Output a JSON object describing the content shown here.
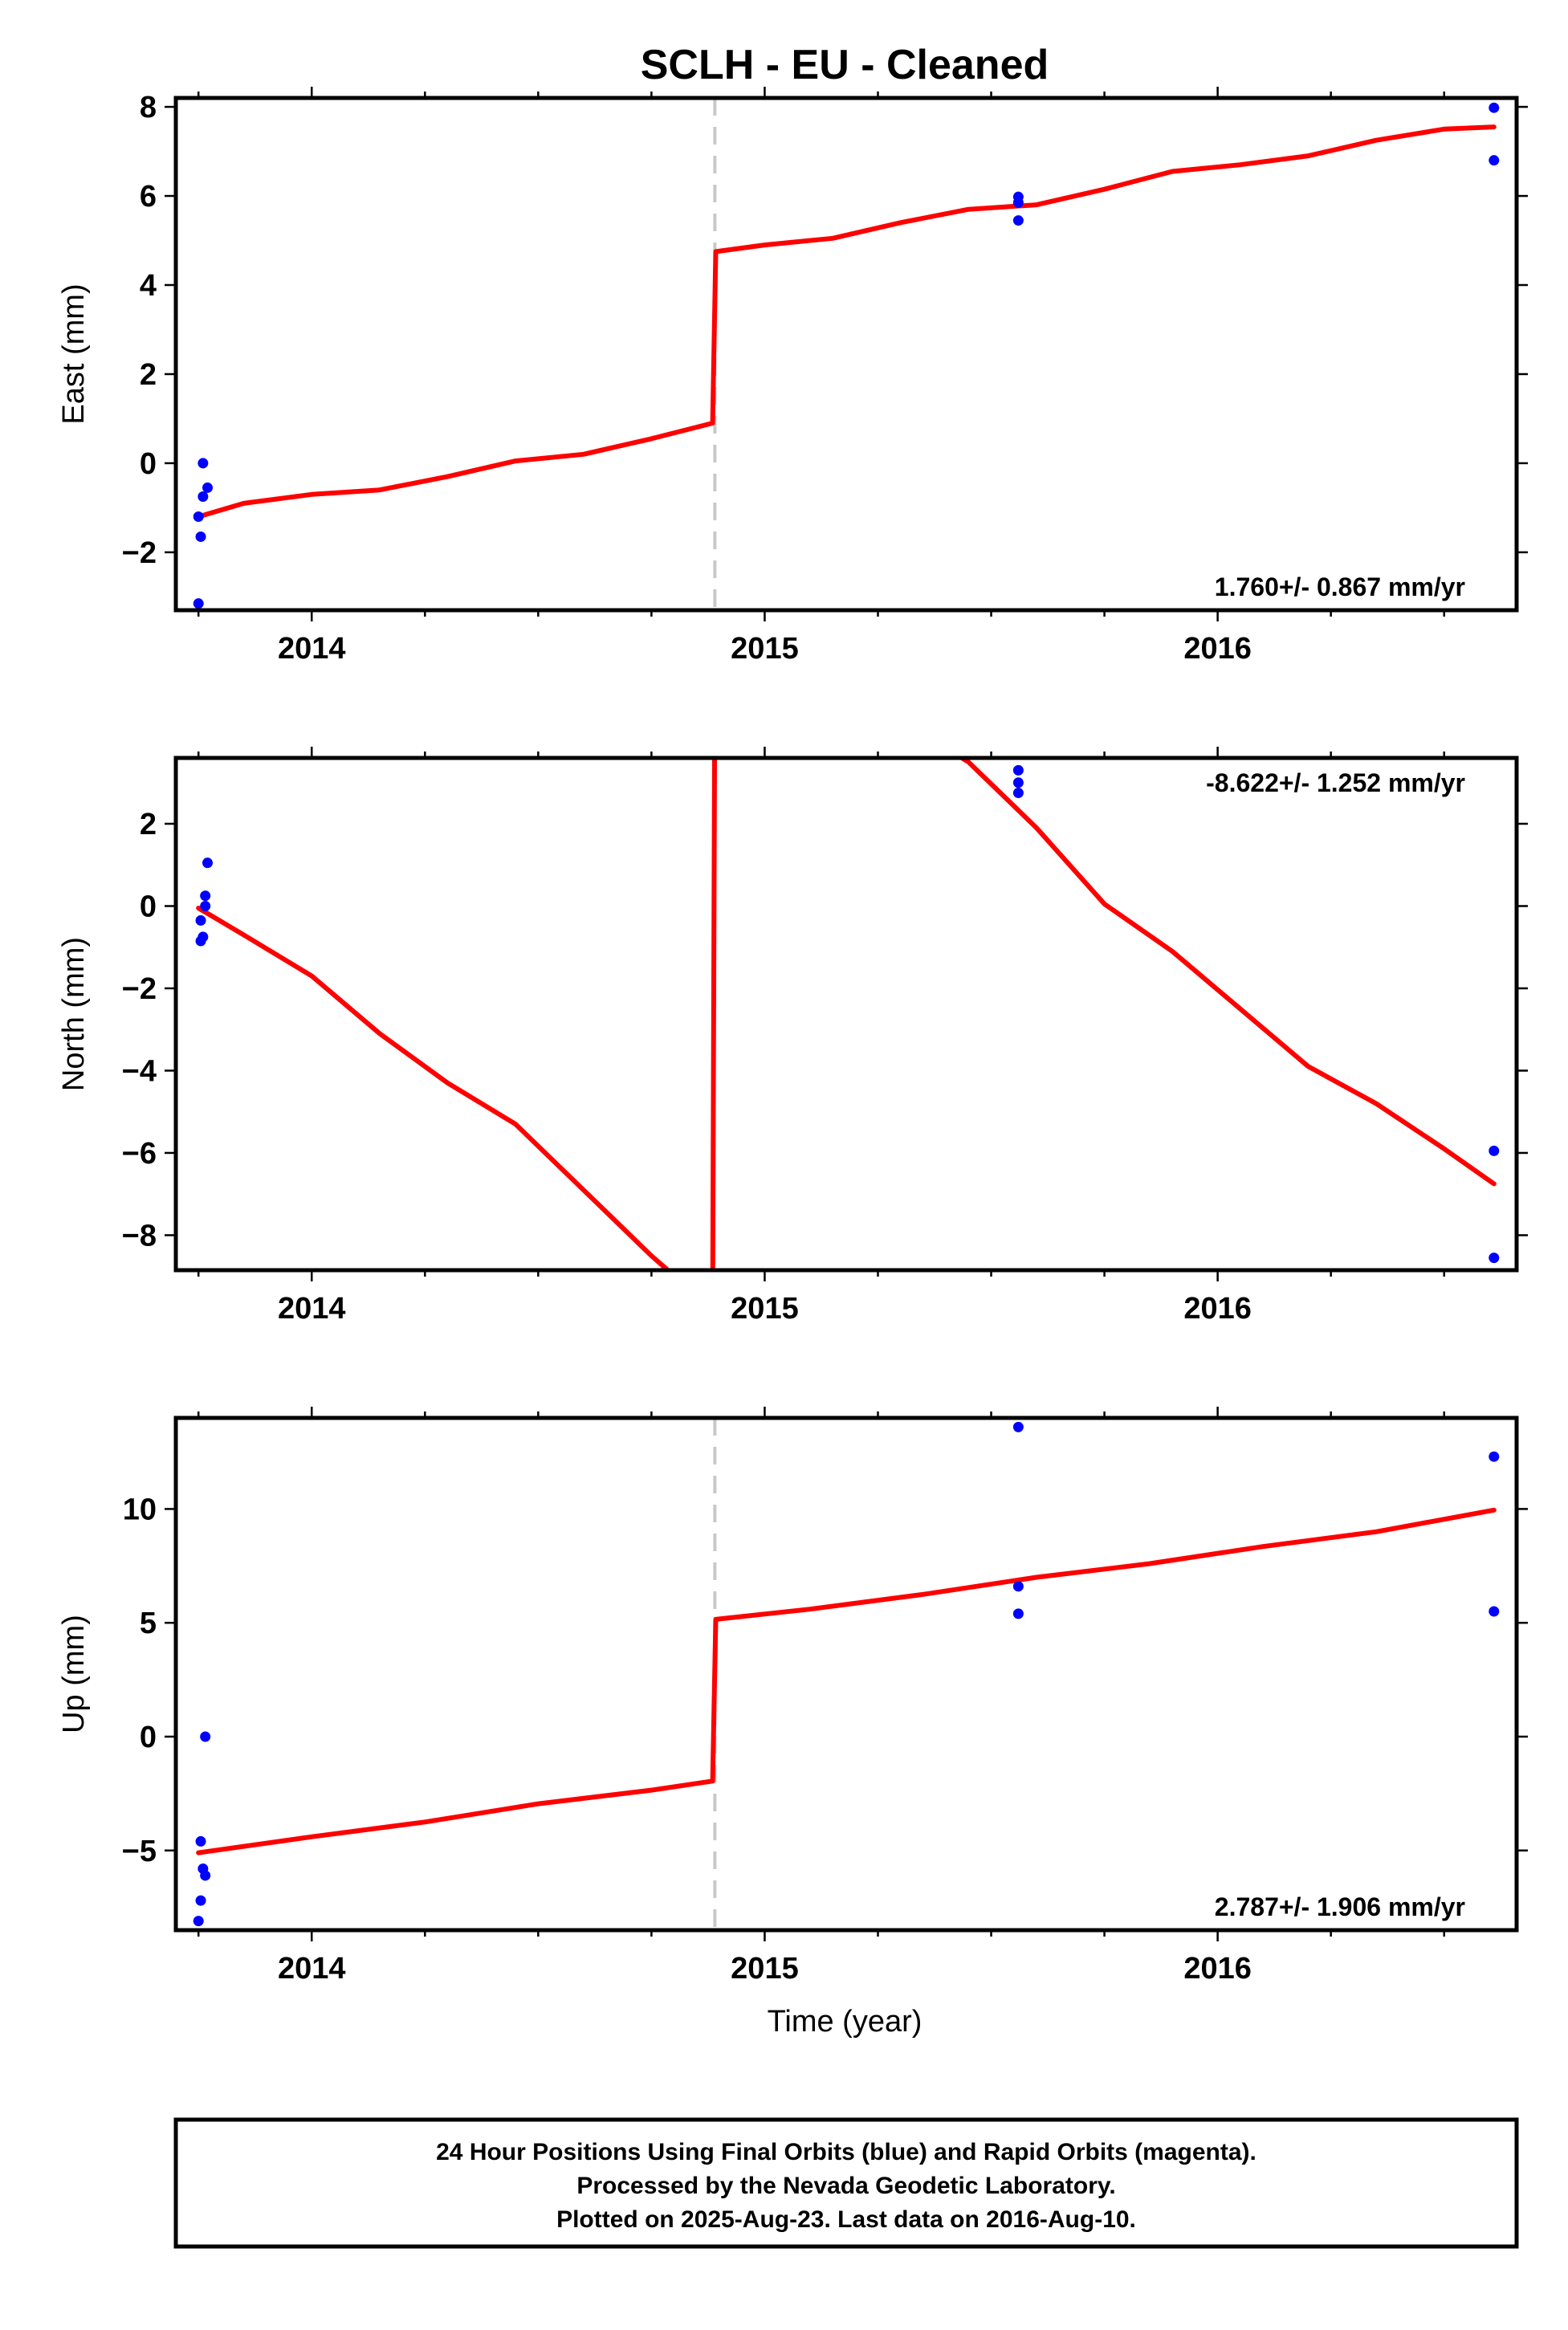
{
  "figure": {
    "title": "SCLH  - EU - Cleaned",
    "xlabel": "Time (year)",
    "footer_lines": [
      "24 Hour Positions Using Final Orbits (blue) and Rapid Orbits (magenta).",
      "Processed by the Nevada Geodetic Laboratory.",
      "Plotted on 2025-Aug-23. Last data on 2016-Aug-10."
    ],
    "colors": {
      "data_points": "#0000ff",
      "model_line": "#ff0000",
      "equipment_change": "#c8c8c8",
      "frame": "#000000"
    }
  },
  "chart_data": [
    {
      "type": "scatter",
      "name": "east",
      "ylabel": "East (mm)",
      "rate_label": "1.760+/- 0.867 mm/yr",
      "rate_position": "bottom-right",
      "xlim": [
        2013.7,
        2016.66
      ],
      "ylim": [
        -3.3,
        8.2
      ],
      "xticks": [
        2014,
        2015,
        2016
      ],
      "xtick_labels": [
        "2014",
        "2015",
        "2016"
      ],
      "yticks": [
        -2,
        0,
        2,
        4,
        6,
        8
      ],
      "ytick_labels": [
        "−2",
        "0",
        "2",
        "4",
        "6",
        "8"
      ],
      "grid": false,
      "offset_line_x": 2014.89,
      "points": [
        {
          "x": 2013.76,
          "y": 0.0
        },
        {
          "x": 2013.77,
          "y": -0.55
        },
        {
          "x": 2013.76,
          "y": -0.75
        },
        {
          "x": 2013.75,
          "y": -1.2
        },
        {
          "x": 2013.755,
          "y": -1.65
        },
        {
          "x": 2013.75,
          "y": -3.15
        },
        {
          "x": 2015.56,
          "y": 5.98
        },
        {
          "x": 2015.56,
          "y": 5.85
        },
        {
          "x": 2015.56,
          "y": 5.45
        },
        {
          "x": 2016.61,
          "y": 7.98
        },
        {
          "x": 2016.61,
          "y": 6.8
        }
      ],
      "model": [
        {
          "x": 2013.75,
          "y": -1.2
        },
        {
          "x": 2013.85,
          "y": -0.9
        },
        {
          "x": 2014.0,
          "y": -0.7
        },
        {
          "x": 2014.15,
          "y": -0.6
        },
        {
          "x": 2014.3,
          "y": -0.3
        },
        {
          "x": 2014.45,
          "y": 0.05
        },
        {
          "x": 2014.6,
          "y": 0.2
        },
        {
          "x": 2014.75,
          "y": 0.55
        },
        {
          "x": 2014.885,
          "y": 0.9
        },
        {
          "x": 2014.892,
          "y": 4.75
        },
        {
          "x": 2015.0,
          "y": 4.9
        },
        {
          "x": 2015.15,
          "y": 5.05
        },
        {
          "x": 2015.3,
          "y": 5.4
        },
        {
          "x": 2015.45,
          "y": 5.7
        },
        {
          "x": 2015.6,
          "y": 5.8
        },
        {
          "x": 2015.75,
          "y": 6.15
        },
        {
          "x": 2015.9,
          "y": 6.55
        },
        {
          "x": 2016.05,
          "y": 6.7
        },
        {
          "x": 2016.2,
          "y": 6.9
        },
        {
          "x": 2016.35,
          "y": 7.25
        },
        {
          "x": 2016.5,
          "y": 7.5
        },
        {
          "x": 2016.61,
          "y": 7.55
        }
      ]
    },
    {
      "type": "scatter",
      "name": "north",
      "ylabel": "North (mm)",
      "rate_label": "-8.622+/- 1.252 mm/yr",
      "rate_position": "top-right",
      "xlim": [
        2013.7,
        2016.66
      ],
      "ylim": [
        -8.85,
        3.6
      ],
      "xticks": [
        2014,
        2015,
        2016
      ],
      "xtick_labels": [
        "2014",
        "2015",
        "2016"
      ],
      "yticks": [
        -8,
        -6,
        -4,
        -2,
        0,
        2
      ],
      "ytick_labels": [
        "−8",
        "−6",
        "−4",
        "−2",
        "0",
        "2"
      ],
      "grid": false,
      "offset_line_x": null,
      "points": [
        {
          "x": 2013.77,
          "y": 1.05
        },
        {
          "x": 2013.765,
          "y": 0.25
        },
        {
          "x": 2013.765,
          "y": 0.0
        },
        {
          "x": 2013.755,
          "y": -0.35
        },
        {
          "x": 2013.76,
          "y": -0.75
        },
        {
          "x": 2013.755,
          "y": -0.85
        },
        {
          "x": 2015.56,
          "y": 3.3
        },
        {
          "x": 2015.56,
          "y": 3.0
        },
        {
          "x": 2015.56,
          "y": 2.75
        },
        {
          "x": 2016.61,
          "y": -5.95
        },
        {
          "x": 2016.61,
          "y": -8.55
        }
      ],
      "model": [
        {
          "x": 2013.75,
          "y": -0.05
        },
        {
          "x": 2013.85,
          "y": -0.7
        },
        {
          "x": 2014.0,
          "y": -1.7
        },
        {
          "x": 2014.15,
          "y": -3.1
        },
        {
          "x": 2014.3,
          "y": -4.3
        },
        {
          "x": 2014.45,
          "y": -5.3
        },
        {
          "x": 2014.6,
          "y": -6.9
        },
        {
          "x": 2014.75,
          "y": -8.5
        },
        {
          "x": 2014.885,
          "y": -9.8
        },
        {
          "x": 2014.892,
          "y": 12.0
        },
        {
          "x": 2015.15,
          "y": 5.5
        },
        {
          "x": 2015.3,
          "y": 4.5
        },
        {
          "x": 2015.45,
          "y": 3.5
        },
        {
          "x": 2015.6,
          "y": 1.9
        },
        {
          "x": 2015.75,
          "y": 0.05
        },
        {
          "x": 2015.9,
          "y": -1.1
        },
        {
          "x": 2016.05,
          "y": -2.5
        },
        {
          "x": 2016.2,
          "y": -3.9
        },
        {
          "x": 2016.35,
          "y": -4.8
        },
        {
          "x": 2016.5,
          "y": -5.9
        },
        {
          "x": 2016.61,
          "y": -6.75
        }
      ]
    },
    {
      "type": "scatter",
      "name": "up",
      "ylabel": "Up (mm)",
      "rate_label": "2.787+/- 1.906 mm/yr",
      "rate_position": "bottom-right",
      "xlim": [
        2013.7,
        2016.66
      ],
      "ylim": [
        -8.5,
        14.0
      ],
      "xticks": [
        2014,
        2015,
        2016
      ],
      "xtick_labels": [
        "2014",
        "2015",
        "2016"
      ],
      "yticks": [
        -5,
        0,
        5,
        10
      ],
      "ytick_labels": [
        "−5",
        "0",
        "5",
        "10"
      ],
      "grid": false,
      "offset_line_x": 2014.89,
      "points": [
        {
          "x": 2013.765,
          "y": 0.0
        },
        {
          "x": 2013.755,
          "y": -4.6
        },
        {
          "x": 2013.76,
          "y": -5.8
        },
        {
          "x": 2013.765,
          "y": -6.1
        },
        {
          "x": 2013.755,
          "y": -7.2
        },
        {
          "x": 2013.75,
          "y": -8.1
        },
        {
          "x": 2015.56,
          "y": 13.6
        },
        {
          "x": 2015.56,
          "y": 6.6
        },
        {
          "x": 2015.56,
          "y": 5.4
        },
        {
          "x": 2016.61,
          "y": 12.3
        },
        {
          "x": 2016.61,
          "y": 5.5
        }
      ],
      "model": [
        {
          "x": 2013.75,
          "y": -5.1
        },
        {
          "x": 2014.0,
          "y": -4.4
        },
        {
          "x": 2014.25,
          "y": -3.75
        },
        {
          "x": 2014.5,
          "y": -2.95
        },
        {
          "x": 2014.75,
          "y": -2.35
        },
        {
          "x": 2014.885,
          "y": -1.95
        },
        {
          "x": 2014.892,
          "y": 5.15
        },
        {
          "x": 2015.1,
          "y": 5.6
        },
        {
          "x": 2015.35,
          "y": 6.25
        },
        {
          "x": 2015.6,
          "y": 7.0
        },
        {
          "x": 2015.85,
          "y": 7.6
        },
        {
          "x": 2016.1,
          "y": 8.35
        },
        {
          "x": 2016.35,
          "y": 9.0
        },
        {
          "x": 2016.61,
          "y": 9.95
        }
      ]
    }
  ]
}
